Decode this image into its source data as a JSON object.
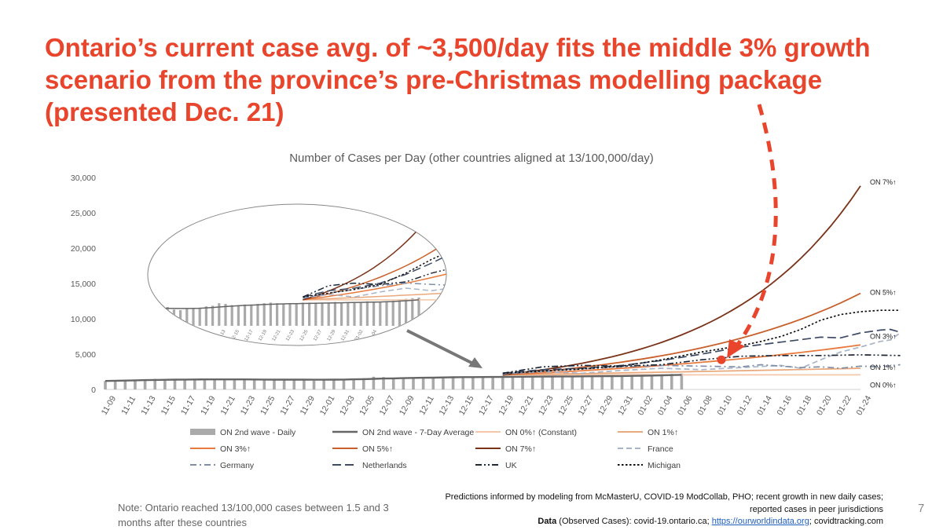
{
  "headline": "Ontario’s current case avg. of ~3,500/day fits the middle 3% growth scenario from the province’s pre-Christmas modelling package (presented Dec. 21)",
  "note": "Note:  Ontario reached 13/100,000 cases between 1.5 and 3 months after these countries",
  "source": {
    "line1": "Predictions informed by modeling from McMasterU, COVID-19 ModCollab, PHO; recent growth in new daily cases; reported cases in peer jurisdictions",
    "data_label": "Data",
    "data_text": " (Observed Cases): covid-19.ontario.ca; ",
    "link": "https://ourworldindata.org",
    "tail": "; covidtracking.com"
  },
  "page_number": "7",
  "colors": {
    "headline": "#e8452c",
    "highlight_marker": "#e8452c",
    "arrow": "#e8452c"
  },
  "chart_data": {
    "type": "line",
    "title": "Number of Cases per Day (other countries aligned at 13/100,000/day)",
    "xlabel": "",
    "ylabel": "",
    "ylim": [
      0,
      30000
    ],
    "yticks": [
      0,
      5000,
      10000,
      15000,
      20000,
      25000,
      30000
    ],
    "ytick_labels": [
      "0",
      "5,000",
      "10,000",
      "15,000",
      "20,000",
      "25,000",
      "30,000"
    ],
    "x_start": "2020-11-09",
    "x_end": "2021-01-24",
    "xtick_labels": [
      "11-09",
      "11-11",
      "11-13",
      "11-15",
      "11-17",
      "11-19",
      "11-21",
      "11-23",
      "11-25",
      "11-27",
      "11-29",
      "12-01",
      "12-03",
      "12-05",
      "12-07",
      "12-09",
      "12-11",
      "12-13",
      "12-15",
      "12-17",
      "12-19",
      "12-21",
      "12-23",
      "12-25",
      "12-27",
      "12-29",
      "12-31",
      "01-02",
      "01-04",
      "01-06",
      "01-08",
      "01-10",
      "01-12",
      "01-14",
      "01-16",
      "01-18",
      "01-20",
      "01-22",
      "01-24"
    ],
    "grid": false,
    "legend_position": "bottom",
    "series": [
      {
        "name": "ON 2nd wave - Daily",
        "type": "bar",
        "color": "#aaaaaa",
        "values": [
          1200,
          1250,
          1300,
          1350,
          1400,
          1500,
          1350,
          1450,
          1400,
          1500,
          1450,
          1400,
          1450,
          1400,
          1450,
          1300,
          1400,
          1450,
          1350,
          1500,
          1300,
          1250,
          1350,
          1400,
          1450,
          1550,
          1600,
          1800,
          1750,
          1650,
          1650,
          1700,
          1700,
          1750,
          1800,
          1850,
          1800,
          1750,
          1750,
          1800,
          1850,
          1850,
          1850,
          1850,
          1850,
          1900,
          1850,
          1850,
          1900,
          1900,
          1950,
          1850,
          1900,
          1900,
          2000,
          2100,
          2150,
          2200,
          2250
        ]
      },
      {
        "name": "ON 2nd wave - 7-Day Average",
        "type": "line",
        "color": "#666666",
        "values": [
          1200,
          1230,
          1260,
          1290,
          1320,
          1350,
          1370,
          1390,
          1400,
          1410,
          1420,
          1420,
          1420,
          1420,
          1420,
          1410,
          1400,
          1390,
          1390,
          1390,
          1390,
          1380,
          1380,
          1390,
          1400,
          1430,
          1460,
          1500,
          1540,
          1570,
          1600,
          1630,
          1650,
          1670,
          1700,
          1720,
          1740,
          1750,
          1760,
          1770,
          1780,
          1790,
          1800,
          1810,
          1820,
          1830,
          1840,
          1850,
          1860,
          1870,
          1880,
          1890,
          1900,
          1920,
          1940,
          1970,
          2000,
          2030,
          2070
        ]
      },
      {
        "name": "ON 0%↑ (Constant)",
        "type": "line",
        "color": "#f5c7a8",
        "label": "ON 0%↑",
        "points": [
          [
            40,
            2070
          ],
          [
            76,
            2070
          ]
        ]
      },
      {
        "name": "ON 1%↑",
        "type": "line",
        "color": "#e9a97c",
        "label": "ON 1%↑",
        "start": [
          40,
          2070
        ],
        "end_value": 3000
      },
      {
        "name": "ON 3%↑",
        "type": "line",
        "color": "#e87a3e",
        "label": "ON 3%↑",
        "start": [
          40,
          2070
        ],
        "end_value": 6300
      },
      {
        "name": "ON 5%↑",
        "type": "line",
        "color": "#c8602b",
        "label": "ON 5%↑",
        "start": [
          40,
          2070
        ],
        "end_value": 13600
      },
      {
        "name": "ON 7%↑",
        "type": "line",
        "color": "#7a3318",
        "label": "ON 7%↑",
        "start": [
          40,
          2070
        ],
        "end_value": 28800
      },
      {
        "name": "France",
        "type": "line",
        "color": "#a9b4c6",
        "dash": "dash",
        "points": [
          [
            40,
            2200
          ],
          [
            44,
            2500
          ],
          [
            48,
            2300
          ],
          [
            52,
            2700
          ],
          [
            56,
            3000
          ],
          [
            60,
            2800
          ],
          [
            64,
            3100
          ],
          [
            68,
            3400
          ],
          [
            70,
            3000
          ],
          [
            72,
            4200
          ],
          [
            74,
            5300
          ],
          [
            76,
            6000
          ],
          [
            78,
            6800
          ],
          [
            79,
            7000
          ],
          [
            80,
            8000
          ]
        ]
      },
      {
        "name": "Germany",
        "type": "line",
        "color": "#7f8ea8",
        "dash": "dashdot",
        "points": [
          [
            40,
            2200
          ],
          [
            44,
            2600
          ],
          [
            48,
            2900
          ],
          [
            52,
            3200
          ],
          [
            56,
            3400
          ],
          [
            60,
            3300
          ],
          [
            64,
            3200
          ],
          [
            66,
            3500
          ],
          [
            68,
            3300
          ],
          [
            70,
            3100
          ],
          [
            72,
            3200
          ],
          [
            74,
            3000
          ],
          [
            76,
            3300
          ],
          [
            78,
            3200
          ],
          [
            80,
            3500
          ]
        ]
      },
      {
        "name": "Netherlands",
        "type": "line",
        "color": "#3c4a63",
        "dash": "longdash",
        "points": [
          [
            40,
            2300
          ],
          [
            44,
            2800
          ],
          [
            48,
            3000
          ],
          [
            52,
            3400
          ],
          [
            56,
            4100
          ],
          [
            60,
            5000
          ],
          [
            64,
            6000
          ],
          [
            68,
            6700
          ],
          [
            72,
            7400
          ],
          [
            74,
            7300
          ],
          [
            76,
            8000
          ],
          [
            78,
            8400
          ],
          [
            79,
            8500
          ],
          [
            80,
            8100
          ]
        ]
      },
      {
        "name": "UK",
        "type": "line",
        "color": "#1f2838",
        "dash": "dashdotdot",
        "points": [
          [
            40,
            2300
          ],
          [
            44,
            3200
          ],
          [
            48,
            3400
          ],
          [
            52,
            3300
          ],
          [
            56,
            3500
          ],
          [
            60,
            4200
          ],
          [
            64,
            4700
          ],
          [
            68,
            4800
          ],
          [
            72,
            4800
          ],
          [
            76,
            4900
          ],
          [
            80,
            4800
          ]
        ]
      },
      {
        "name": "Michigan",
        "type": "line",
        "color": "#111111",
        "dash": "dot",
        "points": [
          [
            40,
            2300
          ],
          [
            44,
            2600
          ],
          [
            48,
            2900
          ],
          [
            52,
            3300
          ],
          [
            56,
            4200
          ],
          [
            60,
            5300
          ],
          [
            64,
            6200
          ],
          [
            66,
            6800
          ],
          [
            68,
            7500
          ],
          [
            70,
            8500
          ],
          [
            72,
            9800
          ],
          [
            74,
            10600
          ],
          [
            76,
            11000
          ],
          [
            78,
            11200
          ],
          [
            80,
            11200
          ]
        ]
      }
    ],
    "highlight_point": {
      "x": 62,
      "y": 4200
    }
  }
}
